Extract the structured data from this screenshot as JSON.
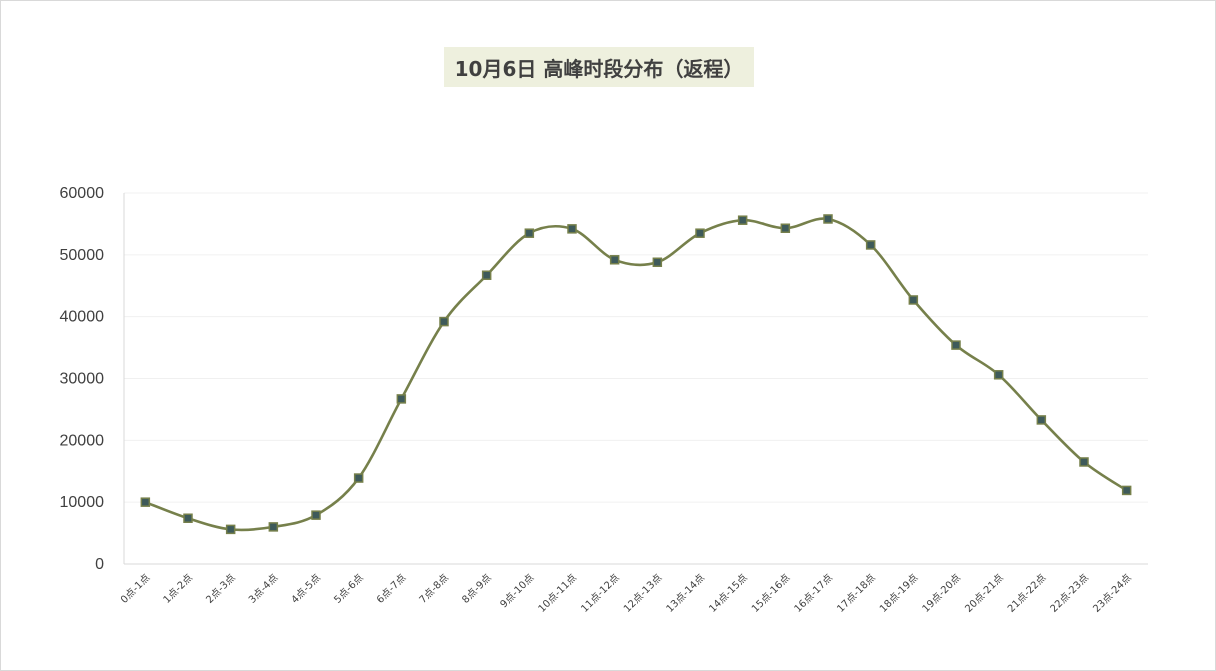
{
  "chart_data": {
    "type": "line",
    "title": "10月6日 高峰时段分布（返程）",
    "xlabel": "",
    "ylabel": "",
    "ylim": [
      0,
      60000
    ],
    "yticks": [
      0,
      10000,
      20000,
      30000,
      40000,
      50000,
      60000
    ],
    "grid": true,
    "legend": "none",
    "colors": {
      "line": "#76804b",
      "marker_fill": "#3e5a5a",
      "marker_stroke": "#76804b",
      "title_bg": "#eef0de"
    },
    "categories": [
      "0点-1点",
      "1点-2点",
      "2点-3点",
      "3点-4点",
      "4点-5点",
      "5点-6点",
      "6点-7点",
      "7点-8点",
      "8点-9点",
      "9点-10点",
      "10点-11点",
      "11点-12点",
      "12点-13点",
      "13点-14点",
      "14点-15点",
      "15点-16点",
      "16点-17点",
      "17点-18点",
      "18点-19点",
      "19点-20点",
      "20点-21点",
      "21点-22点",
      "22点-23点",
      "23点-24点"
    ],
    "values": [
      10000,
      7400,
      5600,
      6000,
      7900,
      13900,
      26700,
      39200,
      46700,
      53500,
      54200,
      49200,
      48800,
      53500,
      55600,
      54300,
      55800,
      51600,
      42700,
      35400,
      30600,
      23300,
      16500,
      11900
    ]
  }
}
